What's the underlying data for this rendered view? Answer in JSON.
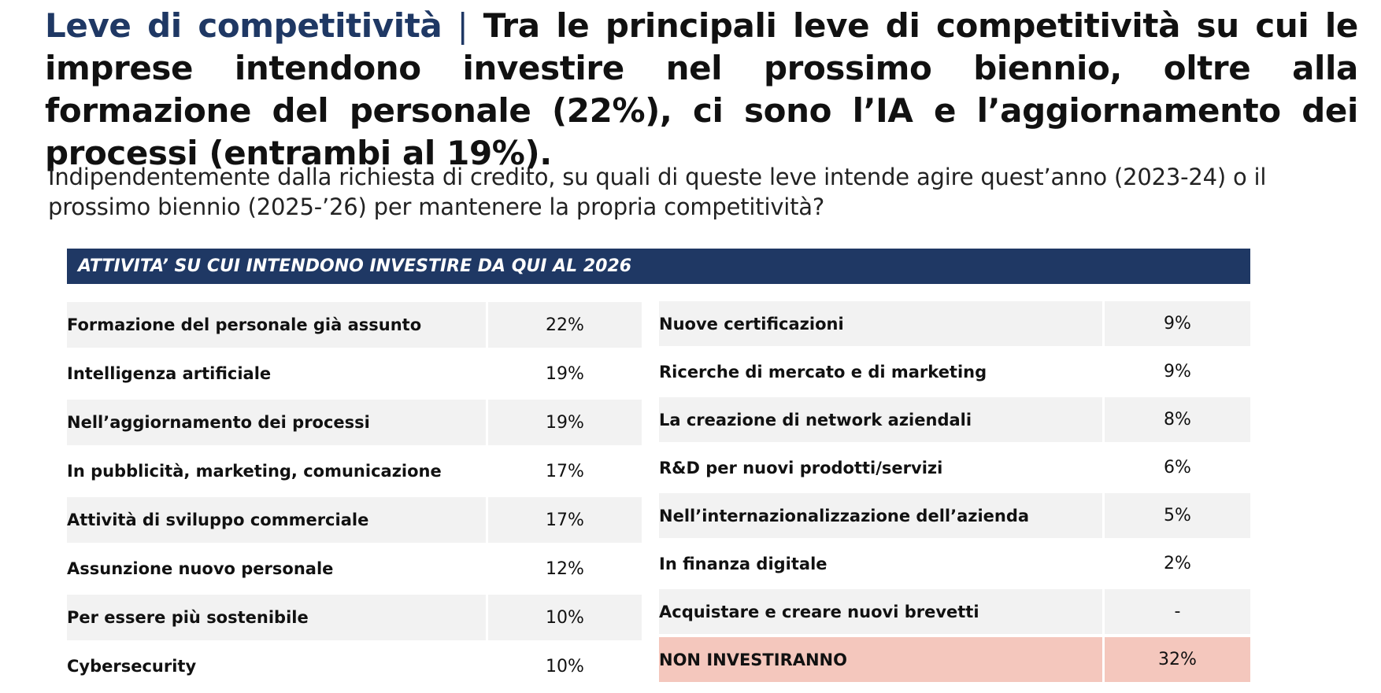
{
  "headline": {
    "lead": "Leve di competitività",
    "separator": " | ",
    "text": "Tra le principali leve di competitività su cui le imprese intendono investire nel prossimo biennio, oltre alla formazione del personale (22%), ci sono l’IA e l’aggiornamento dei processi (entrambi al 19%)."
  },
  "question": "Indipendentemente dalla richiesta di credito, su quali di queste leve intende agire quest’anno (2023-24) o il prossimo biennio (2025-’26) per mantenere la propria competitività?",
  "banner": "ATTIVITA’ SU CUI INTENDONO INVESTIRE DA QUI AL 2026",
  "left_rows": [
    {
      "label": "Formazione del personale già assunto",
      "value": "22%"
    },
    {
      "label": "Intelligenza artificiale",
      "value": "19%"
    },
    {
      "label": "Nell’aggiornamento dei processi",
      "value": "19%"
    },
    {
      "label": "In pubblicità, marketing, comunicazione",
      "value": "17%"
    },
    {
      "label": "Attività di sviluppo commerciale",
      "value": "17%"
    },
    {
      "label": "Assunzione nuovo personale",
      "value": "12%"
    },
    {
      "label": "Per essere più sostenibile",
      "value": "10%"
    },
    {
      "label": "Cybersecurity",
      "value": "10%"
    }
  ],
  "right_rows": [
    {
      "label": "Nuove certificazioni",
      "value": "9%"
    },
    {
      "label": "Ricerche di mercato e di marketing",
      "value": "9%"
    },
    {
      "label": "La creazione di network aziendali",
      "value": "8%"
    },
    {
      "label": "R&D per nuovi prodotti/servizi",
      "value": "6%"
    },
    {
      "label": "Nell’internazionalizzazione dell’azienda",
      "value": "5%"
    },
    {
      "label": "In finanza digitale",
      "value": "2%"
    },
    {
      "label": "Acquistare e creare nuovi brevetti",
      "value": "-"
    },
    {
      "label": "NON INVESTIRANNO",
      "value": "32%"
    }
  ],
  "colors": {
    "navy": "#1f3864",
    "row_shade": "#f2f2f2",
    "highlight": "#f4c7bd"
  }
}
